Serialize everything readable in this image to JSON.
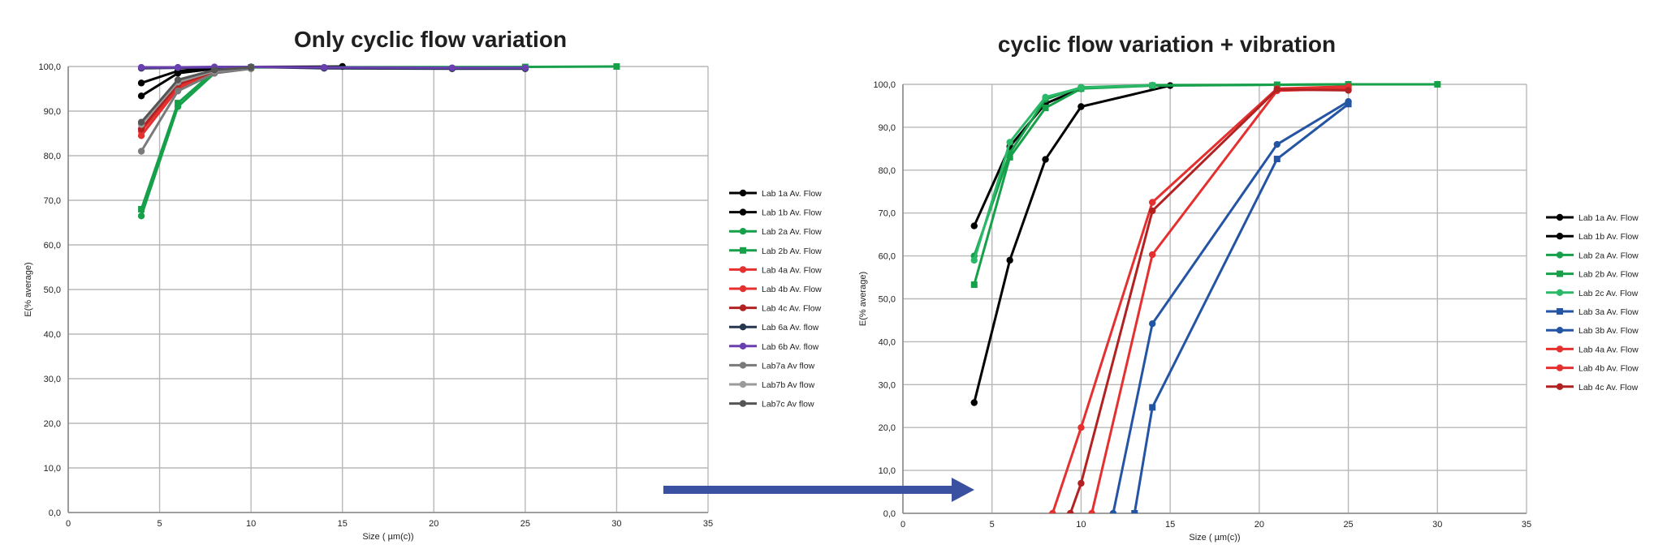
{
  "arrow_color": "#3a50a0",
  "chart_data": [
    {
      "type": "line",
      "title": "Only cyclic flow variation",
      "xlabel": "Size ( µm(c))",
      "ylabel": "E(% average)",
      "xlim": [
        0,
        35
      ],
      "ylim": [
        0,
        100
      ],
      "xticks": [
        "0",
        "5",
        "10",
        "15",
        "20",
        "25",
        "30",
        "35"
      ],
      "yticks": [
        "0,0",
        "10,0",
        "20,0",
        "30,0",
        "40,0",
        "50,0",
        "60,0",
        "70,0",
        "80,0",
        "90,0",
        "100,0"
      ],
      "grid": true,
      "legend_position": "right",
      "series": [
        {
          "name": "Lab 1a Av. Flow",
          "color": "#000000",
          "marker": "circle",
          "x": [
            4,
            6,
            8,
            10
          ],
          "y": [
            93.4,
            98.5,
            99.5,
            99.9
          ]
        },
        {
          "name": "Lab 1b Av. Flow",
          "color": "#000000",
          "marker": "circle",
          "x": [
            4,
            6,
            8,
            10,
            15
          ],
          "y": [
            96.3,
            99.0,
            99.7,
            99.9,
            100.0
          ]
        },
        {
          "name": "Lab 2a Av. Flow",
          "color": "#16a04a",
          "marker": "circle",
          "x": [
            4,
            6,
            8,
            10
          ],
          "y": [
            66.5,
            91.0,
            98.5,
            99.7
          ]
        },
        {
          "name": "Lab 2b Av. Flow",
          "color": "#16a04a",
          "marker": "square",
          "x": [
            4,
            6,
            8,
            10,
            25,
            30
          ],
          "y": [
            68.0,
            91.8,
            99.0,
            99.8,
            99.9,
            100.0
          ]
        },
        {
          "name": "Lab 4a Av. Flow",
          "color": "#e53030",
          "marker": "circle",
          "x": [
            4,
            6,
            8,
            10
          ],
          "y": [
            84.5,
            95.0,
            98.5,
            99.6
          ]
        },
        {
          "name": "Lab 4b Av. Flow",
          "color": "#e53030",
          "marker": "circle",
          "x": [
            4,
            6,
            8,
            10
          ],
          "y": [
            85.5,
            95.5,
            98.7,
            99.7
          ]
        },
        {
          "name": "Lab 4c Av. Flow",
          "color": "#b22222",
          "marker": "circle",
          "x": [
            4,
            6,
            8,
            10
          ],
          "y": [
            86.0,
            96.0,
            98.8,
            99.7
          ]
        },
        {
          "name": "Lab 6a Av. flow",
          "color": "#26364f",
          "marker": "circle",
          "x": [
            4,
            6,
            8,
            10,
            14,
            21,
            25
          ],
          "y": [
            99.6,
            99.7,
            99.8,
            99.9,
            99.6,
            99.5,
            99.5
          ]
        },
        {
          "name": "Lab 6b Av. flow",
          "color": "#6a3fb0",
          "marker": "circle",
          "x": [
            4,
            6,
            8,
            10,
            14,
            21,
            25
          ],
          "y": [
            99.8,
            99.8,
            99.9,
            99.9,
            99.8,
            99.7,
            99.7
          ]
        },
        {
          "name": "Lab7a Av flow",
          "color": "#7a7a7a",
          "marker": "circle",
          "x": [
            4,
            6,
            8,
            10
          ],
          "y": [
            81.0,
            94.5,
            98.5,
            99.5
          ]
        },
        {
          "name": "Lab7b Av flow",
          "color": "#9a9a9a",
          "marker": "circle",
          "x": [
            4,
            6,
            8,
            10
          ],
          "y": [
            87.0,
            96.5,
            99.0,
            99.8
          ]
        },
        {
          "name": "Lab7c Av flow",
          "color": "#555555",
          "marker": "circle",
          "x": [
            4,
            6,
            8,
            10
          ],
          "y": [
            87.5,
            97.0,
            99.2,
            99.8
          ]
        }
      ]
    },
    {
      "type": "line",
      "title": "cyclic flow variation  +  vibration",
      "xlabel": "Size ( µm(c))",
      "ylabel": "E(% average)",
      "xlim": [
        0,
        35
      ],
      "ylim": [
        0,
        100
      ],
      "xticks": [
        "0",
        "5",
        "10",
        "15",
        "20",
        "25",
        "30",
        "35"
      ],
      "yticks": [
        "0,0",
        "10,0",
        "20,0",
        "30,0",
        "40,0",
        "50,0",
        "60,0",
        "70,0",
        "80,0",
        "90,0",
        "100,0"
      ],
      "grid": true,
      "legend_position": "right",
      "series": [
        {
          "name": "Lab 1a Av. Flow",
          "color": "#000000",
          "marker": "circle",
          "x": [
            4,
            6,
            8,
            10,
            15
          ],
          "y": [
            25.8,
            59.0,
            82.5,
            94.8,
            99.7
          ]
        },
        {
          "name": "Lab 1b Av. Flow",
          "color": "#000000",
          "marker": "circle",
          "x": [
            4,
            6,
            8,
            10
          ],
          "y": [
            67.0,
            85.5,
            95.5,
            99.0
          ]
        },
        {
          "name": "Lab 2a Av. Flow",
          "color": "#16a04a",
          "marker": "circle",
          "x": [
            4,
            6,
            8,
            10,
            14,
            21,
            25,
            30
          ],
          "y": [
            60.0,
            84.0,
            96.5,
            99.3,
            99.8,
            99.9,
            100.0,
            100.0
          ]
        },
        {
          "name": "Lab 2b Av. Flow",
          "color": "#16a04a",
          "marker": "square",
          "x": [
            4,
            6,
            8,
            10,
            14,
            21,
            25,
            30
          ],
          "y": [
            53.3,
            83.0,
            94.5,
            99.0,
            99.7,
            99.9,
            100.0,
            100.0
          ]
        },
        {
          "name": "Lab 2c Av. Flow",
          "color": "#2bb868",
          "marker": "circle",
          "x": [
            4,
            6,
            8,
            10,
            14
          ],
          "y": [
            59.0,
            86.5,
            97.0,
            99.2,
            99.8
          ]
        },
        {
          "name": "Lab 3a Av. Flow",
          "color": "#2454a4",
          "marker": "square",
          "x": [
            13,
            14,
            21,
            25
          ],
          "y": [
            0,
            24.7,
            82.6,
            95.4
          ]
        },
        {
          "name": "Lab 3b Av. Flow",
          "color": "#2454a4",
          "marker": "circle",
          "x": [
            11.8,
            14,
            21,
            25
          ],
          "y": [
            0,
            44.2,
            86.0,
            96.0
          ]
        },
        {
          "name": "Lab 4a Av. Flow",
          "color": "#e53030",
          "marker": "circle",
          "x": [
            8.4,
            10,
            14,
            21,
            25
          ],
          "y": [
            0,
            20.0,
            72.5,
            99.0,
            99.5
          ]
        },
        {
          "name": "Lab 4b Av. Flow",
          "color": "#e53030",
          "marker": "circle",
          "x": [
            10.6,
            14,
            21,
            25
          ],
          "y": [
            0,
            60.3,
            98.5,
            99.0
          ]
        },
        {
          "name": "Lab 4c Av. Flow",
          "color": "#b22222",
          "marker": "circle",
          "x": [
            9.4,
            10,
            14,
            21,
            25
          ],
          "y": [
            0,
            7.0,
            70.5,
            98.8,
            98.6
          ]
        }
      ]
    }
  ]
}
